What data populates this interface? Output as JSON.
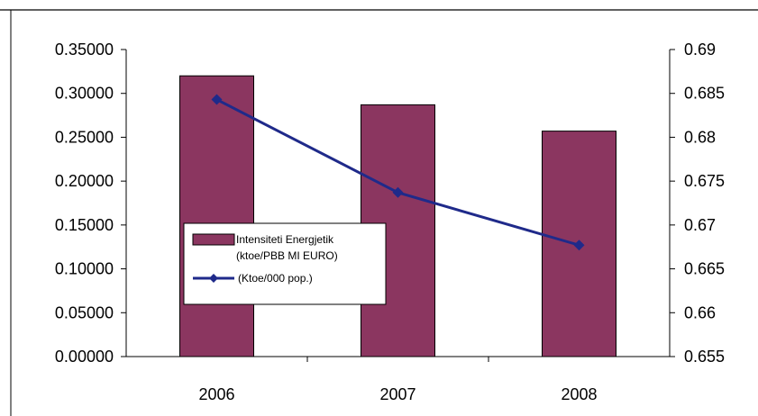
{
  "chart_data": {
    "type": "bar",
    "categories": [
      "2006",
      "2007",
      "2008"
    ],
    "series": [
      {
        "name": "Intensiteti Energjetik (ktoe/PBB MI EURO)",
        "type": "bar",
        "axis": "left",
        "values": [
          0.32,
          0.287,
          0.257
        ],
        "color": "#8b3660"
      },
      {
        "name": "(Ktoe/000 pop.)",
        "type": "line",
        "axis": "right",
        "values": [
          0.6843,
          0.6737,
          0.6677
        ],
        "color": "#1f2a8a"
      }
    ],
    "y_left": {
      "range": [
        0,
        0.35
      ],
      "ticks": [
        "0.00000",
        "0.05000",
        "0.10000",
        "0.15000",
        "0.20000",
        "0.25000",
        "0.30000",
        "0.35000"
      ]
    },
    "y_right": {
      "range": [
        0.655,
        0.69
      ],
      "ticks": [
        "0.655",
        "0.66",
        "0.665",
        "0.67",
        "0.675",
        "0.68",
        "0.685",
        "0.69"
      ]
    },
    "legend": {
      "position": "middle-left",
      "entries": [
        {
          "lines": [
            "Intensiteti  Energjetik",
            "(ktoe/PBB MI EURO)"
          ],
          "kind": "bar"
        },
        {
          "lines": [
            "(Ktoe/000  pop.)"
          ],
          "kind": "line"
        }
      ]
    },
    "grid": false,
    "xlabel": "",
    "ylabel": ""
  }
}
